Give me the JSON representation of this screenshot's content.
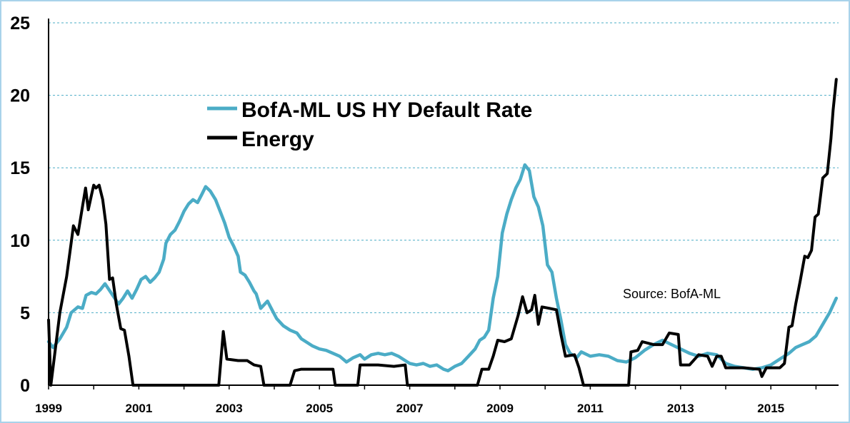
{
  "chart_data": {
    "type": "line",
    "title": "",
    "xlabel": "",
    "ylabel": "",
    "xlim": [
      1999,
      2016.5
    ],
    "ylim": [
      0,
      25
    ],
    "yticks": [
      "0",
      "5",
      "10",
      "15",
      "20",
      "25"
    ],
    "xticks": [
      "1999",
      "2001",
      "2003",
      "2005",
      "2007",
      "2009",
      "2011",
      "2013",
      "2015"
    ],
    "grid": "horizontal dashed",
    "legend_position": "top-center",
    "annotation": "Source: BofA-ML",
    "series": [
      {
        "name": "BofA-ML US HY Default Rate",
        "color": "#4bacc6",
        "points": [
          [
            1999.0,
            3.0
          ],
          [
            1999.1,
            2.6
          ],
          [
            1999.25,
            3.2
          ],
          [
            1999.4,
            4.0
          ],
          [
            1999.5,
            5.0
          ],
          [
            1999.65,
            5.4
          ],
          [
            1999.75,
            5.3
          ],
          [
            1999.83,
            6.2
          ],
          [
            1999.95,
            6.4
          ],
          [
            2000.05,
            6.3
          ],
          [
            2000.15,
            6.6
          ],
          [
            2000.25,
            7.0
          ],
          [
            2000.4,
            6.3
          ],
          [
            2000.55,
            5.6
          ],
          [
            2000.65,
            6.0
          ],
          [
            2000.75,
            6.5
          ],
          [
            2000.85,
            6.0
          ],
          [
            2000.95,
            6.6
          ],
          [
            2001.05,
            7.3
          ],
          [
            2001.15,
            7.5
          ],
          [
            2001.25,
            7.1
          ],
          [
            2001.35,
            7.4
          ],
          [
            2001.45,
            7.8
          ],
          [
            2001.55,
            8.7
          ],
          [
            2001.6,
            9.8
          ],
          [
            2001.7,
            10.4
          ],
          [
            2001.8,
            10.7
          ],
          [
            2001.9,
            11.3
          ],
          [
            2002.0,
            12.0
          ],
          [
            2002.1,
            12.5
          ],
          [
            2002.2,
            12.8
          ],
          [
            2002.3,
            12.6
          ],
          [
            2002.4,
            13.2
          ],
          [
            2002.48,
            13.7
          ],
          [
            2002.58,
            13.4
          ],
          [
            2002.7,
            12.8
          ],
          [
            2002.8,
            12.0
          ],
          [
            2002.9,
            11.2
          ],
          [
            2003.0,
            10.2
          ],
          [
            2003.1,
            9.6
          ],
          [
            2003.2,
            8.9
          ],
          [
            2003.25,
            7.8
          ],
          [
            2003.35,
            7.6
          ],
          [
            2003.45,
            7.1
          ],
          [
            2003.55,
            6.5
          ],
          [
            2003.6,
            6.3
          ],
          [
            2003.7,
            5.3
          ],
          [
            2003.85,
            5.8
          ],
          [
            2003.95,
            5.2
          ],
          [
            2004.05,
            4.6
          ],
          [
            2004.2,
            4.1
          ],
          [
            2004.35,
            3.8
          ],
          [
            2004.5,
            3.6
          ],
          [
            2004.6,
            3.2
          ],
          [
            2004.7,
            3.0
          ],
          [
            2004.85,
            2.7
          ],
          [
            2005.0,
            2.5
          ],
          [
            2005.15,
            2.4
          ],
          [
            2005.3,
            2.2
          ],
          [
            2005.45,
            2.0
          ],
          [
            2005.6,
            1.6
          ],
          [
            2005.75,
            1.9
          ],
          [
            2005.9,
            2.1
          ],
          [
            2006.0,
            1.8
          ],
          [
            2006.15,
            2.1
          ],
          [
            2006.3,
            2.2
          ],
          [
            2006.45,
            2.1
          ],
          [
            2006.6,
            2.2
          ],
          [
            2006.75,
            2.0
          ],
          [
            2006.9,
            1.7
          ],
          [
            2007.0,
            1.5
          ],
          [
            2007.15,
            1.4
          ],
          [
            2007.3,
            1.5
          ],
          [
            2007.45,
            1.3
          ],
          [
            2007.6,
            1.4
          ],
          [
            2007.75,
            1.1
          ],
          [
            2007.85,
            1.0
          ],
          [
            2008.0,
            1.3
          ],
          [
            2008.15,
            1.5
          ],
          [
            2008.3,
            2.0
          ],
          [
            2008.45,
            2.5
          ],
          [
            2008.55,
            3.1
          ],
          [
            2008.65,
            3.3
          ],
          [
            2008.75,
            3.8
          ],
          [
            2008.85,
            6.0
          ],
          [
            2008.95,
            7.5
          ],
          [
            2009.05,
            10.5
          ],
          [
            2009.15,
            11.8
          ],
          [
            2009.25,
            12.8
          ],
          [
            2009.35,
            13.6
          ],
          [
            2009.45,
            14.2
          ],
          [
            2009.55,
            15.2
          ],
          [
            2009.65,
            14.8
          ],
          [
            2009.75,
            13.0
          ],
          [
            2009.85,
            12.3
          ],
          [
            2009.95,
            11.0
          ],
          [
            2010.05,
            8.3
          ],
          [
            2010.15,
            7.8
          ],
          [
            2010.25,
            6.0
          ],
          [
            2010.35,
            4.5
          ],
          [
            2010.45,
            2.8
          ],
          [
            2010.55,
            2.2
          ],
          [
            2010.7,
            1.9
          ],
          [
            2010.8,
            2.3
          ],
          [
            2011.0,
            2.0
          ],
          [
            2011.2,
            2.1
          ],
          [
            2011.4,
            2.0
          ],
          [
            2011.6,
            1.7
          ],
          [
            2011.8,
            1.6
          ],
          [
            2012.0,
            1.9
          ],
          [
            2012.2,
            2.4
          ],
          [
            2012.4,
            2.8
          ],
          [
            2012.6,
            3.1
          ],
          [
            2012.8,
            2.8
          ],
          [
            2013.0,
            2.5
          ],
          [
            2013.2,
            2.2
          ],
          [
            2013.4,
            2.0
          ],
          [
            2013.6,
            2.2
          ],
          [
            2013.8,
            2.1
          ],
          [
            2014.0,
            1.5
          ],
          [
            2014.2,
            1.3
          ],
          [
            2014.4,
            1.2
          ],
          [
            2014.6,
            1.1
          ],
          [
            2014.8,
            1.2
          ],
          [
            2015.0,
            1.4
          ],
          [
            2015.2,
            1.8
          ],
          [
            2015.4,
            2.2
          ],
          [
            2015.55,
            2.6
          ],
          [
            2015.7,
            2.8
          ],
          [
            2015.85,
            3.0
          ],
          [
            2016.0,
            3.4
          ],
          [
            2016.15,
            4.2
          ],
          [
            2016.3,
            5.0
          ],
          [
            2016.45,
            6.0
          ]
        ]
      },
      {
        "name": "Energy",
        "color": "#000000",
        "points": [
          [
            1999.0,
            4.5
          ],
          [
            1999.05,
            0.0
          ],
          [
            1999.15,
            2.5
          ],
          [
            1999.25,
            5.0
          ],
          [
            1999.4,
            7.5
          ],
          [
            1999.5,
            9.8
          ],
          [
            1999.55,
            11.0
          ],
          [
            1999.65,
            10.4
          ],
          [
            1999.75,
            12.3
          ],
          [
            1999.82,
            13.6
          ],
          [
            1999.88,
            12.1
          ],
          [
            1999.95,
            13.1
          ],
          [
            2000.0,
            13.8
          ],
          [
            2000.05,
            13.6
          ],
          [
            2000.12,
            13.8
          ],
          [
            2000.2,
            12.8
          ],
          [
            2000.27,
            11.1
          ],
          [
            2000.35,
            7.3
          ],
          [
            2000.42,
            7.4
          ],
          [
            2000.5,
            5.6
          ],
          [
            2000.6,
            3.9
          ],
          [
            2000.68,
            3.8
          ],
          [
            2000.78,
            2.0
          ],
          [
            2000.87,
            0.0
          ],
          [
            2002.77,
            0.0
          ],
          [
            2002.87,
            3.7
          ],
          [
            2002.95,
            1.8
          ],
          [
            2003.2,
            1.7
          ],
          [
            2003.4,
            1.7
          ],
          [
            2003.55,
            1.4
          ],
          [
            2003.7,
            1.3
          ],
          [
            2003.77,
            0.0
          ],
          [
            2004.35,
            0.0
          ],
          [
            2004.45,
            1.0
          ],
          [
            2004.6,
            1.1
          ],
          [
            2004.8,
            1.1
          ],
          [
            2005.0,
            1.1
          ],
          [
            2005.3,
            1.1
          ],
          [
            2005.35,
            0.0
          ],
          [
            2005.85,
            0.0
          ],
          [
            2005.9,
            1.4
          ],
          [
            2006.3,
            1.4
          ],
          [
            2006.65,
            1.3
          ],
          [
            2006.9,
            1.4
          ],
          [
            2006.95,
            0.0
          ],
          [
            2008.5,
            0.0
          ],
          [
            2008.6,
            1.1
          ],
          [
            2008.75,
            1.1
          ],
          [
            2008.85,
            2.0
          ],
          [
            2008.95,
            3.1
          ],
          [
            2009.1,
            3.0
          ],
          [
            2009.25,
            3.2
          ],
          [
            2009.4,
            4.8
          ],
          [
            2009.5,
            6.1
          ],
          [
            2009.6,
            5.0
          ],
          [
            2009.7,
            5.2
          ],
          [
            2009.77,
            6.2
          ],
          [
            2009.85,
            4.2
          ],
          [
            2009.93,
            5.4
          ],
          [
            2010.1,
            5.3
          ],
          [
            2010.25,
            5.2
          ],
          [
            2010.35,
            3.5
          ],
          [
            2010.45,
            2.0
          ],
          [
            2010.65,
            2.1
          ],
          [
            2010.75,
            1.2
          ],
          [
            2010.85,
            0.0
          ],
          [
            2011.85,
            0.0
          ],
          [
            2011.9,
            2.3
          ],
          [
            2012.05,
            2.4
          ],
          [
            2012.15,
            3.0
          ],
          [
            2012.4,
            2.8
          ],
          [
            2012.6,
            2.8
          ],
          [
            2012.75,
            3.6
          ],
          [
            2012.95,
            3.5
          ],
          [
            2013.0,
            1.4
          ],
          [
            2013.2,
            1.4
          ],
          [
            2013.4,
            2.1
          ],
          [
            2013.6,
            2.0
          ],
          [
            2013.7,
            1.3
          ],
          [
            2013.8,
            2.0
          ],
          [
            2013.9,
            2.0
          ],
          [
            2014.0,
            1.2
          ],
          [
            2014.4,
            1.2
          ],
          [
            2014.75,
            1.1
          ],
          [
            2014.8,
            0.6
          ],
          [
            2014.9,
            1.2
          ],
          [
            2015.2,
            1.2
          ],
          [
            2015.3,
            1.5
          ],
          [
            2015.4,
            4.0
          ],
          [
            2015.47,
            4.1
          ],
          [
            2015.55,
            5.6
          ],
          [
            2015.65,
            7.2
          ],
          [
            2015.75,
            8.9
          ],
          [
            2015.82,
            8.8
          ],
          [
            2015.9,
            9.3
          ],
          [
            2015.98,
            11.6
          ],
          [
            2016.05,
            11.8
          ],
          [
            2016.15,
            14.3
          ],
          [
            2016.25,
            14.6
          ],
          [
            2016.33,
            17.0
          ],
          [
            2016.38,
            19.0
          ],
          [
            2016.45,
            21.1
          ]
        ]
      }
    ]
  }
}
